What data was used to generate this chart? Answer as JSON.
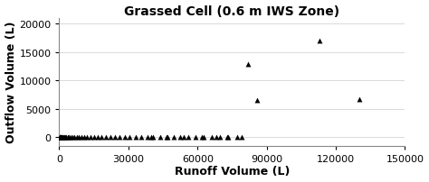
{
  "title": "Grassed Cell (0.6 m IWS Zone)",
  "xlabel": "Runoff Volume (L)",
  "ylabel": "Outflow Volume (L)",
  "xlim": [
    0,
    150000
  ],
  "ylim": [
    -1500,
    21000
  ],
  "xticks": [
    0,
    30000,
    60000,
    90000,
    120000,
    150000
  ],
  "yticks": [
    0,
    5000,
    10000,
    15000,
    20000
  ],
  "marker_color": "#000000",
  "marker": "^",
  "marker_size": 18,
  "scatter_x": [
    100,
    200,
    350,
    500,
    700,
    900,
    1100,
    1400,
    1700,
    2100,
    2500,
    3000,
    3600,
    4200,
    4900,
    5700,
    6600,
    7500,
    8500,
    9600,
    10800,
    12100,
    13500,
    15000,
    16600,
    18300,
    20100,
    22000,
    24000,
    26100,
    28300,
    30600,
    33000,
    35500,
    38100,
    40800,
    43600,
    46500,
    49500,
    52600,
    55800,
    59100,
    62500,
    66000,
    69600,
    73300,
    77100,
    40000,
    47000,
    54000,
    62000,
    68000,
    73000,
    79000,
    82000,
    113000,
    130000,
    86000
  ],
  "scatter_y": [
    0,
    0,
    0,
    0,
    0,
    0,
    0,
    0,
    0,
    0,
    0,
    0,
    0,
    0,
    0,
    0,
    0,
    0,
    0,
    0,
    0,
    0,
    0,
    0,
    0,
    0,
    0,
    0,
    0,
    0,
    0,
    0,
    0,
    0,
    0,
    0,
    0,
    0,
    0,
    0,
    0,
    0,
    0,
    0,
    0,
    0,
    0,
    0,
    0,
    0,
    0,
    0,
    0,
    0,
    12800,
    17000,
    6700,
    6500
  ],
  "background_color": "#ffffff",
  "grid_color": "#cccccc",
  "title_fontsize": 10,
  "label_fontsize": 9,
  "tick_fontsize": 8
}
